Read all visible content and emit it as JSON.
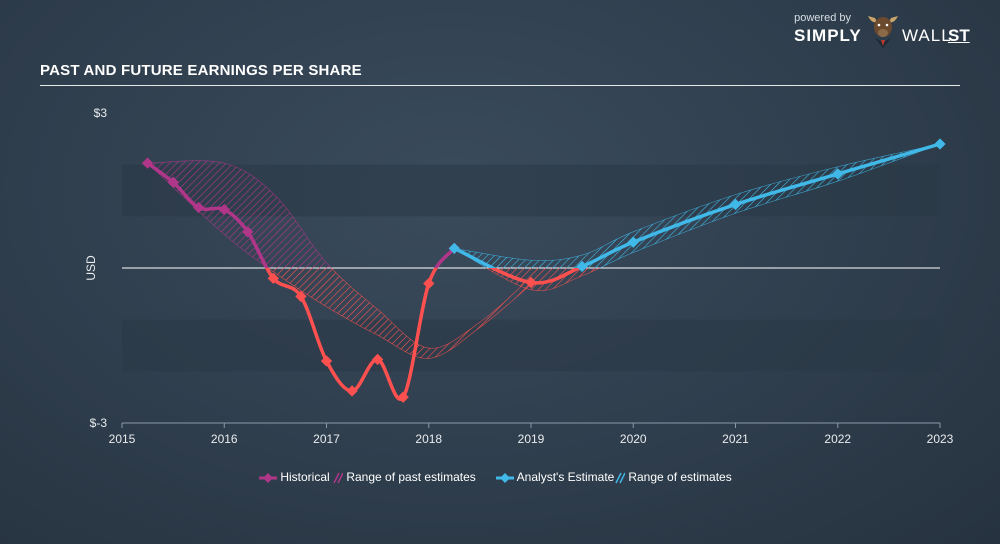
{
  "brand": {
    "powered": "powered by",
    "name_left": "SIMPLY",
    "name_right": "WALL",
    "name_suffix": "ST",
    "logo_icon": "bull-head-icon"
  },
  "title": "PAST AND FUTURE EARNINGS PER SHARE",
  "chart_data": {
    "type": "line",
    "title": "PAST AND FUTURE EARNINGS PER SHARE",
    "ylabel": "USD",
    "xlim": [
      2015,
      2023
    ],
    "ylim": [
      -3,
      3
    ],
    "y_tick_labels": [
      {
        "value": 3,
        "label": "$3"
      },
      {
        "value": -3,
        "label": "$-3"
      }
    ],
    "x_ticks": [
      2015,
      2016,
      2017,
      2018,
      2019,
      2020,
      2021,
      2022,
      2023
    ],
    "x_tick_labels": [
      "2015",
      "2016",
      "2017",
      "2018",
      "2019",
      "2020",
      "2021",
      "2022",
      "2023"
    ],
    "series": [
      {
        "name": "Historical",
        "color_positive": "#b0368a",
        "color_negative": "#ff5050",
        "points": [
          [
            2015.25,
            2.03
          ],
          [
            2015.5,
            1.66
          ],
          [
            2015.75,
            1.17
          ],
          [
            2016.0,
            1.13
          ],
          [
            2016.23,
            0.7
          ],
          [
            2016.48,
            -0.2
          ],
          [
            2016.75,
            -0.55
          ],
          [
            2017.0,
            -1.8
          ],
          [
            2017.25,
            -2.38
          ],
          [
            2017.5,
            -1.77
          ],
          [
            2017.75,
            -2.5
          ],
          [
            2018.0,
            -0.3
          ],
          [
            2018.25,
            0.38
          ]
        ]
      },
      {
        "name": "Analyst's Estimate",
        "color_positive": "#40b8e8",
        "color_negative": "#ff5050",
        "points": [
          [
            2018.25,
            0.38
          ],
          [
            2019.0,
            -0.28
          ],
          [
            2019.5,
            0.03
          ],
          [
            2020.0,
            0.5
          ],
          [
            2021.0,
            1.23
          ],
          [
            2022.0,
            1.82
          ],
          [
            2023.0,
            2.4
          ]
        ]
      }
    ],
    "ranges": [
      {
        "name": "Range of past estimates",
        "color_positive": "#b0368a",
        "color_negative": "#ff5050",
        "upper": [
          [
            2015.25,
            2.03
          ],
          [
            2016.0,
            2.03
          ],
          [
            2016.5,
            1.4
          ],
          [
            2017.0,
            0.1
          ],
          [
            2017.5,
            -0.8
          ],
          [
            2018.0,
            -1.55
          ],
          [
            2018.5,
            -1.05
          ],
          [
            2019.0,
            -0.18
          ]
        ],
        "lower": [
          [
            2015.25,
            2.03
          ],
          [
            2016.0,
            0.65
          ],
          [
            2016.5,
            -0.1
          ],
          [
            2017.0,
            -0.75
          ],
          [
            2017.5,
            -1.3
          ],
          [
            2018.0,
            -1.75
          ],
          [
            2018.5,
            -1.15
          ],
          [
            2019.0,
            -0.32
          ]
        ]
      },
      {
        "name": "Range of estimates",
        "color_positive": "#40b8e8",
        "color_negative": "#ff5050",
        "upper": [
          [
            2018.25,
            0.38
          ],
          [
            2019.0,
            0.15
          ],
          [
            2019.5,
            0.25
          ],
          [
            2020.0,
            0.7
          ],
          [
            2021.0,
            1.42
          ],
          [
            2022.0,
            1.96
          ],
          [
            2023.0,
            2.4
          ]
        ],
        "lower": [
          [
            2018.25,
            0.38
          ],
          [
            2019.0,
            -0.42
          ],
          [
            2019.5,
            -0.15
          ],
          [
            2020.0,
            0.3
          ],
          [
            2021.0,
            1.06
          ],
          [
            2022.0,
            1.68
          ],
          [
            2023.0,
            2.4
          ]
        ]
      }
    ],
    "bands_shaded": [
      [
        1,
        2
      ],
      [
        -1,
        -2
      ]
    ],
    "zero_line": true,
    "legend": {
      "position": "bottom-center",
      "entries": [
        {
          "label": "Historical",
          "kind": "line-marker",
          "color": "#b0368a"
        },
        {
          "label": "Range of past estimates",
          "kind": "hatch",
          "color": "#b0368a"
        },
        {
          "label": "Analyst's Estimate",
          "kind": "line-marker",
          "color": "#40b8e8"
        },
        {
          "label": "Range of estimates",
          "kind": "hatch",
          "color": "#40b8e8"
        }
      ]
    }
  }
}
